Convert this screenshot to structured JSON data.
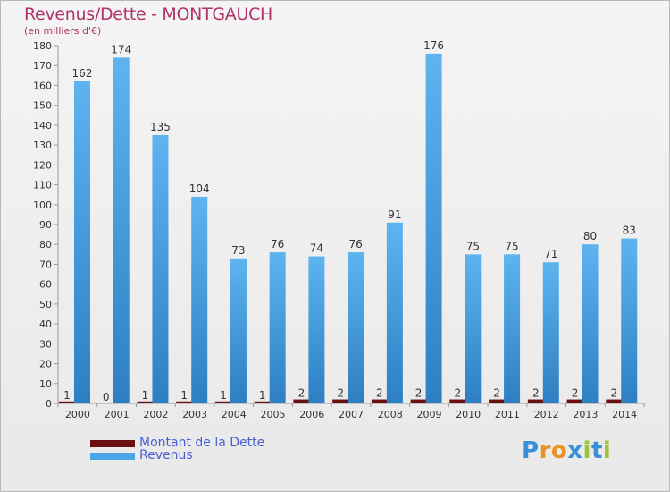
{
  "title": "Revenus/Dette - MONTGAUCH",
  "subtitle": "(en milliers d'€)",
  "legend": {
    "dette": "Montant de la Dette",
    "revenus": "Revenus"
  },
  "logo": {
    "letters": [
      "P",
      "r",
      "o",
      "x",
      "i",
      "t",
      "i"
    ],
    "colors": [
      "#3a8fd9",
      "#e8932a",
      "#e8932a",
      "#3a8fd9",
      "#9bc43a",
      "#3a8fd9",
      "#9bc43a"
    ]
  },
  "colors": {
    "dette": "#6b1010",
    "revenus": "#4aa6e6",
    "revenus_dark": "#2d7fc2",
    "title": "#b0336b",
    "legend_text": "#4a5fd0"
  },
  "chart_data": {
    "type": "bar",
    "title": "Revenus/Dette - MONTGAUCH",
    "subtitle": "(en milliers d'€)",
    "categories": [
      "2000",
      "2001",
      "2002",
      "2003",
      "2004",
      "2005",
      "2006",
      "2007",
      "2008",
      "2009",
      "2010",
      "2011",
      "2012",
      "2013",
      "2014"
    ],
    "series": [
      {
        "name": "Montant de la Dette",
        "values": [
          1,
          0,
          1,
          1,
          1,
          1,
          2,
          2,
          2,
          2,
          2,
          2,
          2,
          2,
          2
        ]
      },
      {
        "name": "Revenus",
        "values": [
          162,
          174,
          135,
          104,
          73,
          76,
          74,
          76,
          91,
          176,
          75,
          75,
          71,
          80,
          83
        ]
      }
    ],
    "ylim": [
      0,
      180
    ],
    "ytick_step": 10,
    "grid": false,
    "legend_position": "bottom-left"
  }
}
